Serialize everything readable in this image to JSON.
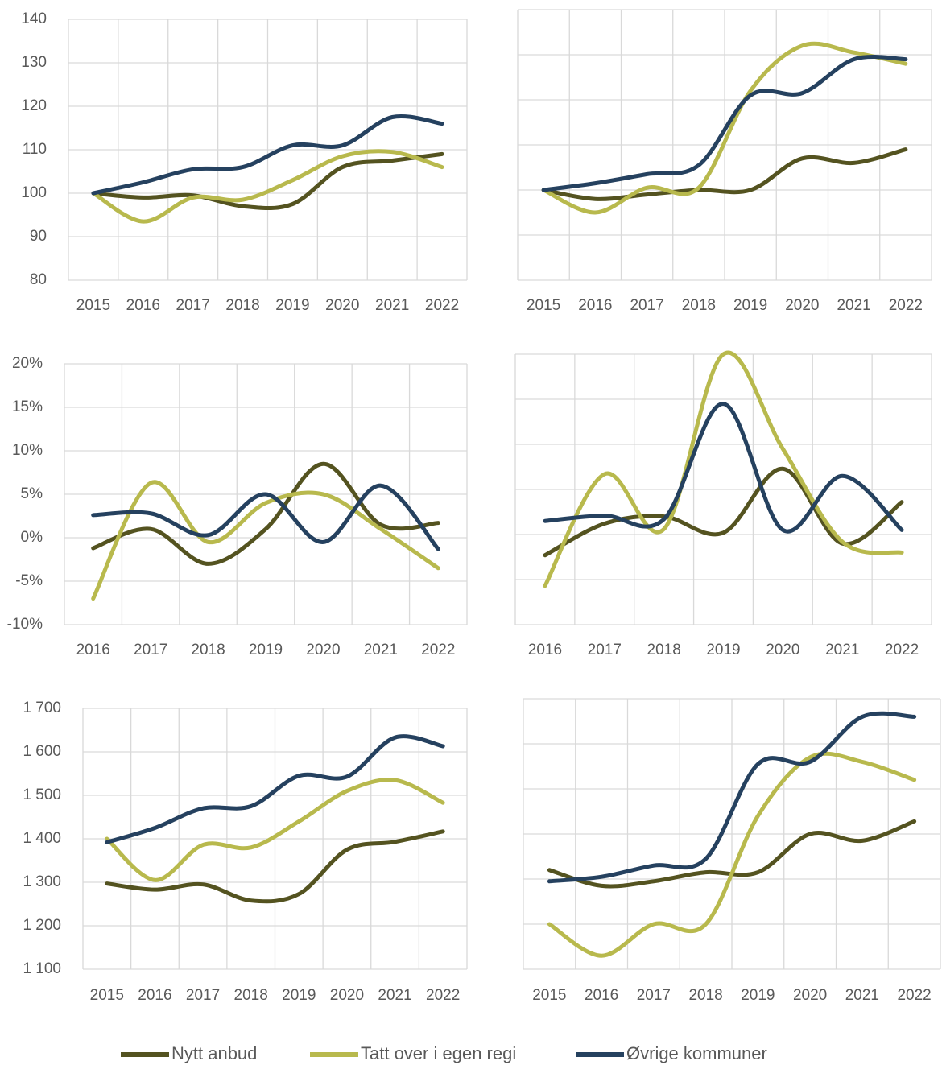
{
  "chart_data": [
    {
      "type": "line",
      "categories": [
        "2015",
        "2016",
        "2017",
        "2018",
        "2019",
        "2020",
        "2021",
        "2022"
      ],
      "ylim": [
        80,
        140
      ],
      "yticks": [
        80,
        90,
        100,
        110,
        120,
        130,
        140
      ],
      "grid": true,
      "series": [
        {
          "name": "Nytt anbud",
          "color": "#545320",
          "values": [
            100,
            99,
            99.5,
            97,
            97.5,
            106,
            107.5,
            109
          ]
        },
        {
          "name": "Tatt over i egen regi",
          "color": "#b8b94d",
          "values": [
            100,
            93.5,
            99,
            98.5,
            103,
            108.5,
            109.5,
            106
          ]
        },
        {
          "name": "Øvrige kommuner",
          "color": "#25415f",
          "values": [
            100,
            102.5,
            105.5,
            106,
            111,
            111,
            117.5,
            116
          ]
        }
      ]
    },
    {
      "type": "line",
      "categories": [
        "2015",
        "2016",
        "2017",
        "2018",
        "2019",
        "2020",
        "2021",
        "2022"
      ],
      "ylim": [
        80,
        140
      ],
      "yticks": [
        80,
        90,
        100,
        110,
        120,
        130,
        140
      ],
      "grid": true,
      "ytick_labels": false,
      "series": [
        {
          "color": "#545320",
          "values": [
            100,
            98,
            99,
            100,
            100,
            107,
            106,
            109
          ]
        },
        {
          "color": "#b8b94d",
          "values": [
            100,
            95,
            100.5,
            100.5,
            122,
            132,
            130.5,
            128
          ]
        },
        {
          "color": "#25415f",
          "values": [
            100,
            101.5,
            103.5,
            105.5,
            121,
            121.5,
            129,
            129
          ]
        }
      ]
    },
    {
      "type": "line",
      "categories": [
        "2016",
        "2017",
        "2018",
        "2019",
        "2020",
        "2021",
        "2022"
      ],
      "ylim": [
        -10,
        20
      ],
      "yticks": [
        {
          "value": -10,
          "label": "-10%"
        },
        {
          "value": -5,
          "label": "-5%"
        },
        {
          "value": 0,
          "label": "0%"
        },
        {
          "value": 5,
          "label": "5%"
        },
        {
          "value": 10,
          "label": "10%"
        },
        {
          "value": 15,
          "label": "15%"
        },
        {
          "value": 20,
          "label": "20%"
        }
      ],
      "grid": true,
      "series": [
        {
          "color": "#545320",
          "values": [
            -1.2,
            1,
            -3,
            1,
            8.5,
            1.5,
            1.7
          ]
        },
        {
          "color": "#b8b94d",
          "values": [
            -7,
            6.3,
            -0.5,
            4,
            5,
            1,
            -3.5
          ]
        },
        {
          "color": "#25415f",
          "values": [
            2.6,
            2.8,
            0.3,
            5,
            -0.5,
            6,
            -1.3
          ]
        }
      ]
    },
    {
      "type": "line",
      "categories": [
        "2016",
        "2017",
        "2018",
        "2019",
        "2020",
        "2021",
        "2022"
      ],
      "ylim": [
        -10,
        20
      ],
      "yticks": [
        -10,
        -5,
        0,
        5,
        10,
        15,
        20
      ],
      "grid": true,
      "ytick_labels": false,
      "series": [
        {
          "color": "#545320",
          "values": [
            -2.3,
            1.2,
            2,
            0.2,
            7.3,
            -1,
            3.6
          ]
        },
        {
          "color": "#b8b94d",
          "values": [
            -5.7,
            6.7,
            0.6,
            20,
            9.5,
            -0.8,
            -2
          ]
        },
        {
          "color": "#25415f",
          "values": [
            1.5,
            2.1,
            1.7,
            14.5,
            0.5,
            6.5,
            0.5
          ]
        }
      ]
    },
    {
      "type": "line",
      "categories": [
        "2015",
        "2016",
        "2017",
        "2018",
        "2019",
        "2020",
        "2021",
        "2022"
      ],
      "ylim": [
        1100,
        1700
      ],
      "yticks": [
        {
          "value": 1100,
          "label": "1 100"
        },
        {
          "value": 1200,
          "label": "1 200"
        },
        {
          "value": 1300,
          "label": "1 300"
        },
        {
          "value": 1400,
          "label": "1 400"
        },
        {
          "value": 1500,
          "label": "1 500"
        },
        {
          "value": 1600,
          "label": "1 600"
        },
        {
          "value": 1700,
          "label": "1 700"
        }
      ],
      "grid": true,
      "series": [
        {
          "color": "#545320",
          "values": [
            1297,
            1283,
            1295,
            1258,
            1273,
            1375,
            1393,
            1417
          ]
        },
        {
          "color": "#b8b94d",
          "values": [
            1400,
            1305,
            1386,
            1380,
            1440,
            1510,
            1535,
            1483
          ]
        },
        {
          "color": "#25415f",
          "values": [
            1392,
            1425,
            1470,
            1475,
            1545,
            1543,
            1633,
            1613
          ]
        }
      ]
    },
    {
      "type": "line",
      "categories": [
        "2015",
        "2016",
        "2017",
        "2018",
        "2019",
        "2020",
        "2021",
        "2022"
      ],
      "ylim": [
        1100,
        1700
      ],
      "yticks": [
        1100,
        1200,
        1300,
        1400,
        1500,
        1600,
        1700
      ],
      "grid": true,
      "ytick_labels": false,
      "series": [
        {
          "color": "#545320",
          "values": [
            1320,
            1285,
            1295,
            1315,
            1315,
            1400,
            1385,
            1428
          ]
        },
        {
          "color": "#b8b94d",
          "values": [
            1200,
            1130,
            1200,
            1200,
            1440,
            1570,
            1560,
            1520
          ]
        },
        {
          "color": "#25415f",
          "values": [
            1295,
            1305,
            1330,
            1345,
            1555,
            1560,
            1660,
            1660
          ]
        }
      ]
    }
  ]
}
